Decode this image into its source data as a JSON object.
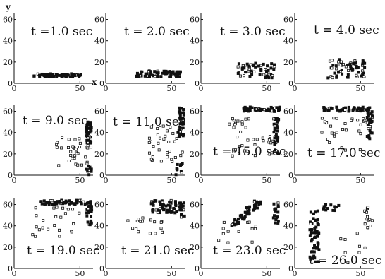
{
  "figure": {
    "x_axis_letter": "x",
    "y_axis_letter": "y"
  },
  "chart_data": [
    {
      "type": "scatter",
      "time_label": "t =1.0 sec",
      "xlim": [
        0,
        60
      ],
      "ylim": [
        0,
        65
      ],
      "xticks": [
        "0",
        "50"
      ],
      "yticks": [
        "0",
        "20",
        "40",
        "60"
      ],
      "clusters": [
        {
          "cx": 33,
          "cy": 7.5,
          "w": 36,
          "h": 3,
          "n": 70,
          "style": "dense"
        }
      ],
      "scatter_points": []
    },
    {
      "type": "scatter",
      "time_label": "t = 2.0 sec",
      "xlim": [
        0,
        60
      ],
      "ylim": [
        0,
        65
      ],
      "xticks": [
        "0",
        "50"
      ],
      "yticks": [
        "0",
        "20",
        "40",
        "60"
      ],
      "clusters": [
        {
          "cx": 40,
          "cy": 9,
          "w": 34,
          "h": 6,
          "n": 75,
          "style": "dense"
        }
      ],
      "scatter_points": []
    },
    {
      "type": "scatter",
      "time_label": "t = 3.0 sec",
      "xlim": [
        0,
        60
      ],
      "ylim": [
        0,
        65
      ],
      "xticks": [
        "0",
        "50"
      ],
      "yticks": [
        "0",
        "20",
        "40",
        "60"
      ],
      "clusters": [
        {
          "cx": 42,
          "cy": 12,
          "w": 28,
          "h": 14,
          "n": 55,
          "style": "mixed"
        }
      ],
      "scatter_points": []
    },
    {
      "type": "scatter",
      "time_label": "t = 4.0 sec",
      "xlim": [
        0,
        60
      ],
      "ylim": [
        0,
        65
      ],
      "xticks": [
        "0",
        "50"
      ],
      "yticks": [
        "0",
        "20",
        "40",
        "60"
      ],
      "clusters": [
        {
          "cx": 40,
          "cy": 14,
          "w": 30,
          "h": 18,
          "n": 60,
          "style": "mixed"
        }
      ],
      "scatter_points": []
    },
    {
      "type": "scatter",
      "time_label": "t = 9.0 sec",
      "xlim": [
        0,
        60
      ],
      "ylim": [
        0,
        65
      ],
      "xticks": [
        "0",
        "50"
      ],
      "yticks": [
        "0",
        "20",
        "40",
        "60"
      ],
      "clusters": [
        {
          "cx": 57,
          "cy": 38,
          "w": 4,
          "h": 24,
          "n": 40,
          "style": "dense"
        },
        {
          "cx": 44,
          "cy": 22,
          "w": 26,
          "h": 28,
          "n": 35,
          "style": "sparse"
        },
        {
          "cx": 57,
          "cy": 5,
          "w": 4,
          "h": 10,
          "n": 10,
          "style": "dense"
        }
      ],
      "scatter_points": []
    },
    {
      "type": "scatter",
      "time_label": "t = 11.0 sec",
      "xlim": [
        0,
        60
      ],
      "ylim": [
        0,
        65
      ],
      "xticks": [
        "0",
        "50"
      ],
      "yticks": [
        "0",
        "20",
        "40",
        "60"
      ],
      "clusters": [
        {
          "cx": 57,
          "cy": 50,
          "w": 5,
          "h": 28,
          "n": 45,
          "style": "dense"
        },
        {
          "cx": 46,
          "cy": 30,
          "w": 26,
          "h": 36,
          "n": 35,
          "style": "sparse"
        },
        {
          "cx": 56,
          "cy": 6,
          "w": 6,
          "h": 12,
          "n": 12,
          "style": "dense"
        }
      ],
      "scatter_points": []
    },
    {
      "type": "scatter",
      "time_label": "t = 15.0 sec",
      "xlim": [
        0,
        60
      ],
      "ylim": [
        0,
        65
      ],
      "xticks": [
        "0",
        "50"
      ],
      "yticks": [
        "0",
        "20",
        "40",
        "60"
      ],
      "clusters": [
        {
          "cx": 46,
          "cy": 62,
          "w": 28,
          "h": 4,
          "n": 45,
          "style": "dense"
        },
        {
          "cx": 57,
          "cy": 40,
          "w": 4,
          "h": 40,
          "n": 40,
          "style": "dense"
        },
        {
          "cx": 38,
          "cy": 38,
          "w": 36,
          "h": 40,
          "n": 40,
          "style": "sparse"
        }
      ],
      "scatter_points": []
    },
    {
      "type": "scatter",
      "time_label": "t = 17.0 sec",
      "xlim": [
        0,
        60
      ],
      "ylim": [
        0,
        65
      ],
      "xticks": [
        "0",
        "50"
      ],
      "yticks": [
        "0",
        "20",
        "40",
        "60"
      ],
      "clusters": [
        {
          "cx": 40,
          "cy": 62,
          "w": 36,
          "h": 4,
          "n": 50,
          "style": "dense"
        },
        {
          "cx": 57,
          "cy": 48,
          "w": 4,
          "h": 28,
          "n": 30,
          "style": "dense"
        },
        {
          "cx": 38,
          "cy": 40,
          "w": 36,
          "h": 36,
          "n": 30,
          "style": "sparse"
        }
      ],
      "scatter_points": []
    },
    {
      "type": "scatter",
      "time_label": "t = 19.0 sec",
      "xlim": [
        0,
        60
      ],
      "ylim": [
        0,
        65
      ],
      "xticks": [
        "0",
        "50"
      ],
      "yticks": [
        "0",
        "20",
        "40",
        "60"
      ],
      "clusters": [
        {
          "cx": 38,
          "cy": 62,
          "w": 36,
          "h": 4,
          "n": 55,
          "style": "dense"
        },
        {
          "cx": 57,
          "cy": 52,
          "w": 4,
          "h": 22,
          "n": 25,
          "style": "dense"
        },
        {
          "cx": 32,
          "cy": 44,
          "w": 36,
          "h": 28,
          "n": 25,
          "style": "sparse"
        }
      ],
      "scatter_points": []
    },
    {
      "type": "scatter",
      "time_label": "t = 21.0 sec",
      "xlim": [
        0,
        60
      ],
      "ylim": [
        0,
        65
      ],
      "xticks": [
        "0",
        "50"
      ],
      "yticks": [
        "0",
        "20",
        "40",
        "60"
      ],
      "clusters": [
        {
          "cx": 44,
          "cy": 58,
          "w": 20,
          "h": 12,
          "n": 55,
          "style": "dense"
        },
        {
          "cx": 58,
          "cy": 54,
          "w": 4,
          "h": 16,
          "n": 18,
          "style": "dense"
        },
        {
          "cx": 28,
          "cy": 44,
          "w": 30,
          "h": 26,
          "n": 20,
          "style": "sparse"
        }
      ],
      "scatter_points": []
    },
    {
      "type": "scatter",
      "time_label": "t = 23.0 sec",
      "xlim": [
        0,
        60
      ],
      "ylim": [
        0,
        65
      ],
      "xticks": [
        "0",
        "50"
      ],
      "yticks": [
        "0",
        "20",
        "40",
        "60"
      ],
      "clusters": [
        {
          "cx": 34,
          "cy": 52,
          "w": 22,
          "h": 24,
          "n": 60,
          "style": "diagonal"
        },
        {
          "cx": 57,
          "cy": 52,
          "w": 4,
          "h": 20,
          "n": 16,
          "style": "dense"
        },
        {
          "cx": 28,
          "cy": 34,
          "w": 30,
          "h": 20,
          "n": 15,
          "style": "sparse"
        }
      ],
      "scatter_points": []
    },
    {
      "type": "scatter",
      "time_label": "t = 26.0 sec",
      "xlim": [
        0,
        60
      ],
      "ylim": [
        0,
        65
      ],
      "xticks": [
        "0",
        "50"
      ],
      "yticks": [
        "0",
        "20",
        "40",
        "60"
      ],
      "clusters": [
        {
          "cx": 15,
          "cy": 30,
          "w": 7,
          "h": 48,
          "n": 55,
          "style": "dense"
        },
        {
          "cx": 28,
          "cy": 57,
          "w": 14,
          "h": 6,
          "n": 14,
          "style": "dense"
        },
        {
          "cx": 55,
          "cy": 48,
          "w": 8,
          "h": 20,
          "n": 15,
          "style": "sparse"
        },
        {
          "cx": 40,
          "cy": 20,
          "w": 30,
          "h": 30,
          "n": 8,
          "style": "sparse"
        }
      ],
      "scatter_points": []
    }
  ]
}
